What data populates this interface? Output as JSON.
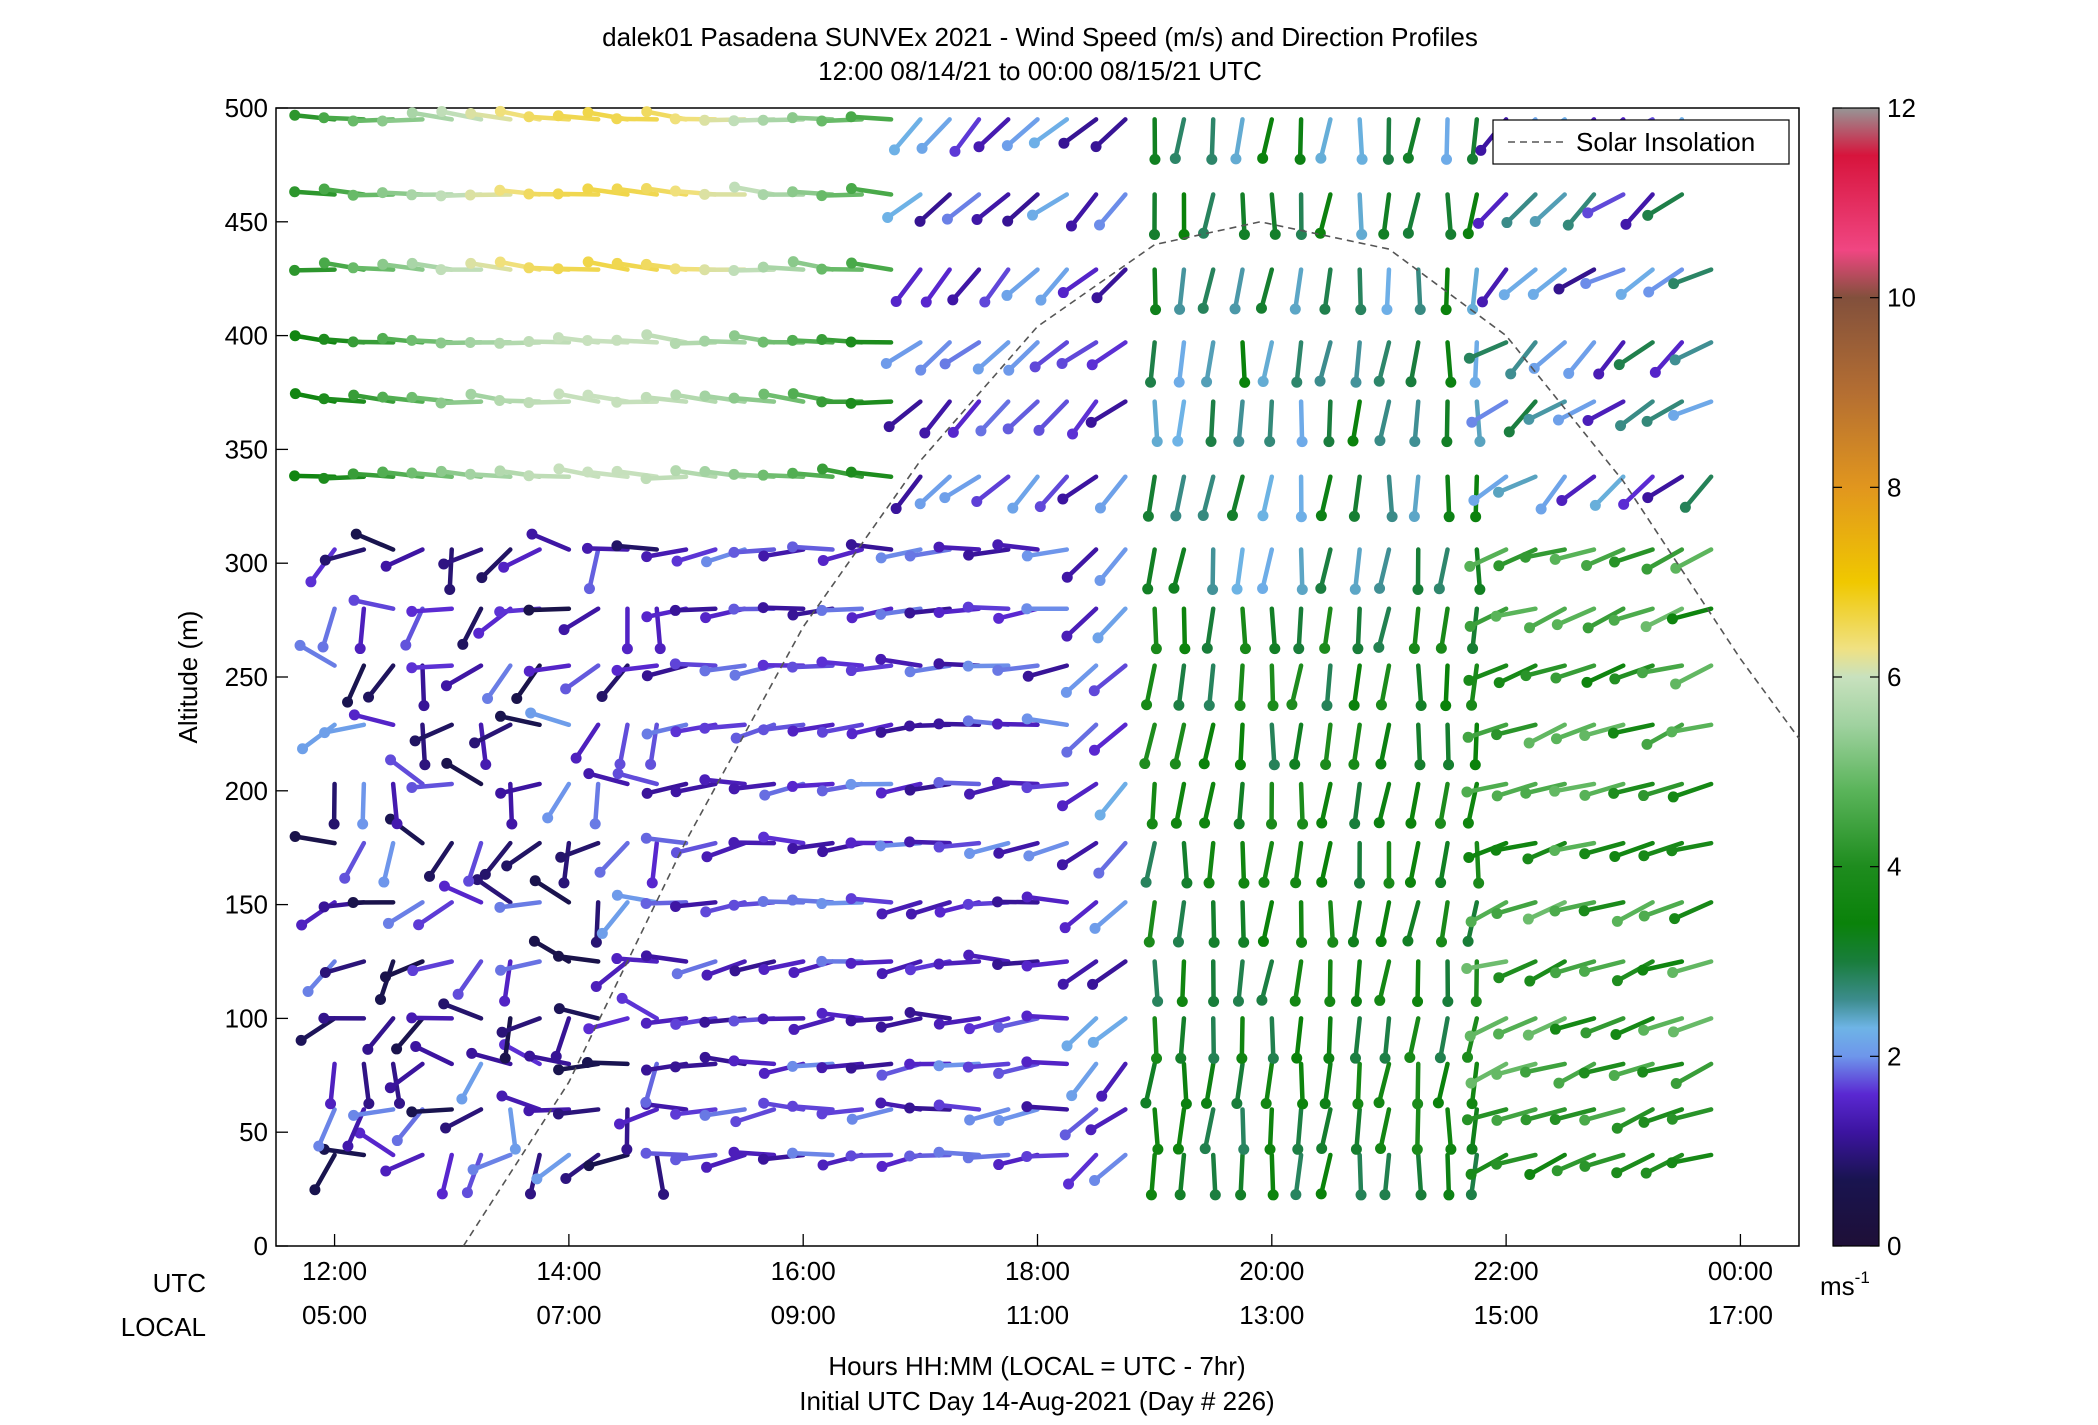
{
  "title": {
    "line1": "dalek01 Pasadena SUNVEx 2021 - Wind Speed (m/s) and Direction Profiles",
    "line2": "12:00 08/14/21 to 00:00 08/15/21  UTC"
  },
  "labels": {
    "utc_row": "UTC",
    "local_row": "LOCAL",
    "xlabel_line1": "Hours HH:MM  (LOCAL = UTC - 7hr)",
    "xlabel_line2": "Initial UTC Day 14-Aug-2021 (Day # 226)",
    "colorbar_unit": "ms",
    "colorbar_unit_exp": "-1"
  },
  "chart_data": {
    "type": "wind-barb profile (time-height)",
    "ylabel": "Altitude (m)",
    "ylim": [
      0,
      500
    ],
    "y_ticks": [
      "0",
      "50",
      "100",
      "150",
      "200",
      "250",
      "300",
      "350",
      "400",
      "450",
      "500"
    ],
    "x_range_hours_utc": [
      11.5,
      24.5
    ],
    "x_ticks_hours_utc": [
      12,
      14,
      16,
      18,
      20,
      22,
      24
    ],
    "x_tick_labels_utc": [
      "12:00",
      "14:00",
      "16:00",
      "18:00",
      "20:00",
      "22:00",
      "00:00"
    ],
    "x_tick_labels_local": [
      "05:00",
      "07:00",
      "09:00",
      "11:00",
      "13:00",
      "15:00",
      "17:00"
    ],
    "altitudes_m": [
      40,
      60,
      80,
      100,
      125,
      151,
      177,
      203,
      229,
      255,
      280,
      306,
      338,
      371,
      397,
      429,
      462,
      495
    ],
    "time_start_utc_hours": 12,
    "time_step_hours": 0.25,
    "n_times": 48,
    "colorbar": {
      "min": 0,
      "max": 12,
      "ticks": [
        0,
        2,
        4,
        6,
        8,
        10,
        12
      ]
    },
    "legend": {
      "label": "Solar Insolation",
      "location": "top-right"
    },
    "solar_insolation": {
      "style": "dashed",
      "color": "#555555",
      "x_hours_utc": [
        13.1,
        14.0,
        15.0,
        16.0,
        17.0,
        18.0,
        19.0,
        19.9,
        21.0,
        22.0,
        23.0,
        24.0,
        24.5
      ],
      "y_m": [
        0,
        72,
        178,
        272,
        345,
        404,
        440,
        450,
        438,
        400,
        336,
        258,
        223
      ]
    },
    "wind_regimes": [
      {
        "period_utc_hours": [
          12.0,
          17.0
        ],
        "altitude_m": [
          330,
          500
        ],
        "speed_ms": [
          3.5,
          6.5
        ],
        "direction_deg": 280,
        "description": "westerly, green to light-green/yellow"
      },
      {
        "period_utc_hours": [
          12.0,
          14.8
        ],
        "altitude_m": [
          30,
          310
        ],
        "speed_ms": [
          0.5,
          2.0
        ],
        "direction_deg": 200,
        "description": "light and variable, dark purple"
      },
      {
        "period_utc_hours": [
          14.8,
          18.3
        ],
        "altitude_m": [
          30,
          310
        ],
        "speed_ms": [
          1.2,
          2.2
        ],
        "direction_deg": 260,
        "description": "light westerly to southwesterly, purple"
      },
      {
        "period_utc_hours": [
          17.2,
          19.0
        ],
        "altitude_m": [
          300,
          500
        ],
        "speed_ms": [
          1.0,
          2.0
        ],
        "direction_deg": 225,
        "description": "light southwesterly, purple"
      },
      {
        "period_utc_hours": [
          19.0,
          22.0
        ],
        "altitude_m": [
          30,
          500
        ],
        "speed_ms": [
          2.0,
          4.0
        ],
        "direction_deg": 185,
        "description": "southerly, blue to green"
      },
      {
        "period_utc_hours": [
          22.0,
          24.0
        ],
        "altitude_m": [
          30,
          310
        ],
        "speed_ms": [
          3.5,
          5.0
        ],
        "direction_deg": 245,
        "description": "southwesterly, green"
      },
      {
        "period_utc_hours": [
          22.0,
          24.0
        ],
        "altitude_m": [
          330,
          500
        ],
        "speed_ms": [
          1.0,
          3.0
        ],
        "direction_deg": 230,
        "description": "light southwesterly, purple/blue"
      }
    ]
  }
}
